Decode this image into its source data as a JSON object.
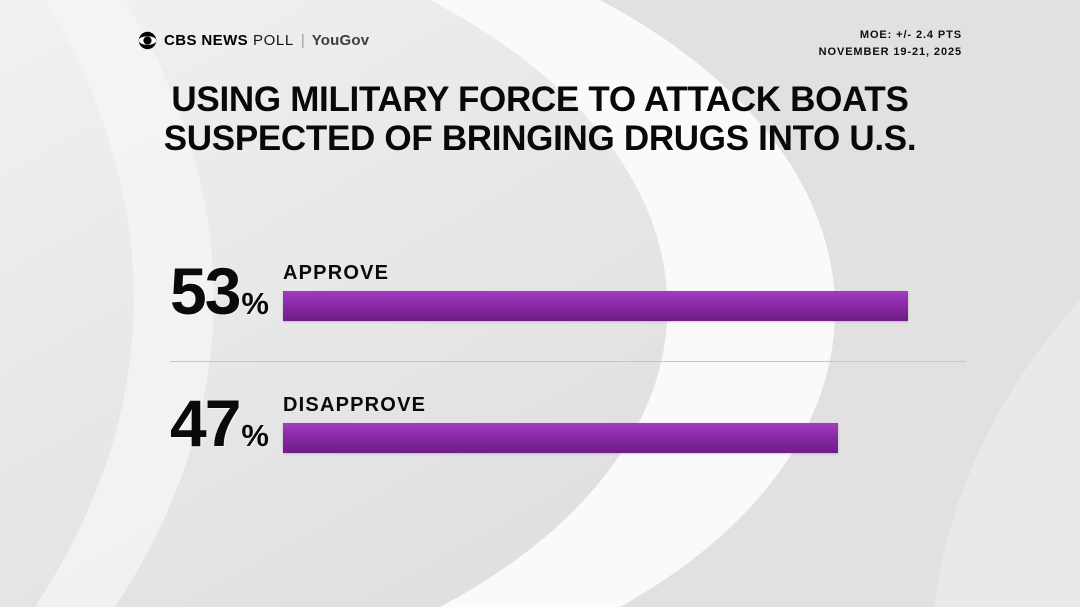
{
  "header": {
    "brand_cbs": "CBS NEWS",
    "brand_poll": "POLL",
    "brand_separator": "|",
    "brand_partner": "YouGov",
    "moe": "MOE: +/- 2.4 PTS",
    "date_range": "NOVEMBER 19-21, 2025"
  },
  "title": {
    "line1": "USING MILITARY FORCE TO ATTACK BOATS",
    "line2": "SUSPECTED OF BRINGING DRUGS INTO U.S."
  },
  "chart_data": {
    "type": "bar",
    "orientation": "horizontal",
    "title": "USING MILITARY FORCE TO ATTACK BOATS SUSPECTED OF BRINGING DRUGS INTO U.S.",
    "source": "CBS NEWS POLL | YouGov",
    "margin_of_error": "MOE: +/- 2.4 PTS",
    "field_dates": "NOVEMBER 19-21, 2025",
    "categories": [
      "APPROVE",
      "DISAPPROVE"
    ],
    "values": [
      53,
      47
    ],
    "unit": "%",
    "xlim": [
      0,
      100
    ],
    "bar_color": "#8a2aa6",
    "legend": false,
    "grid": false
  }
}
